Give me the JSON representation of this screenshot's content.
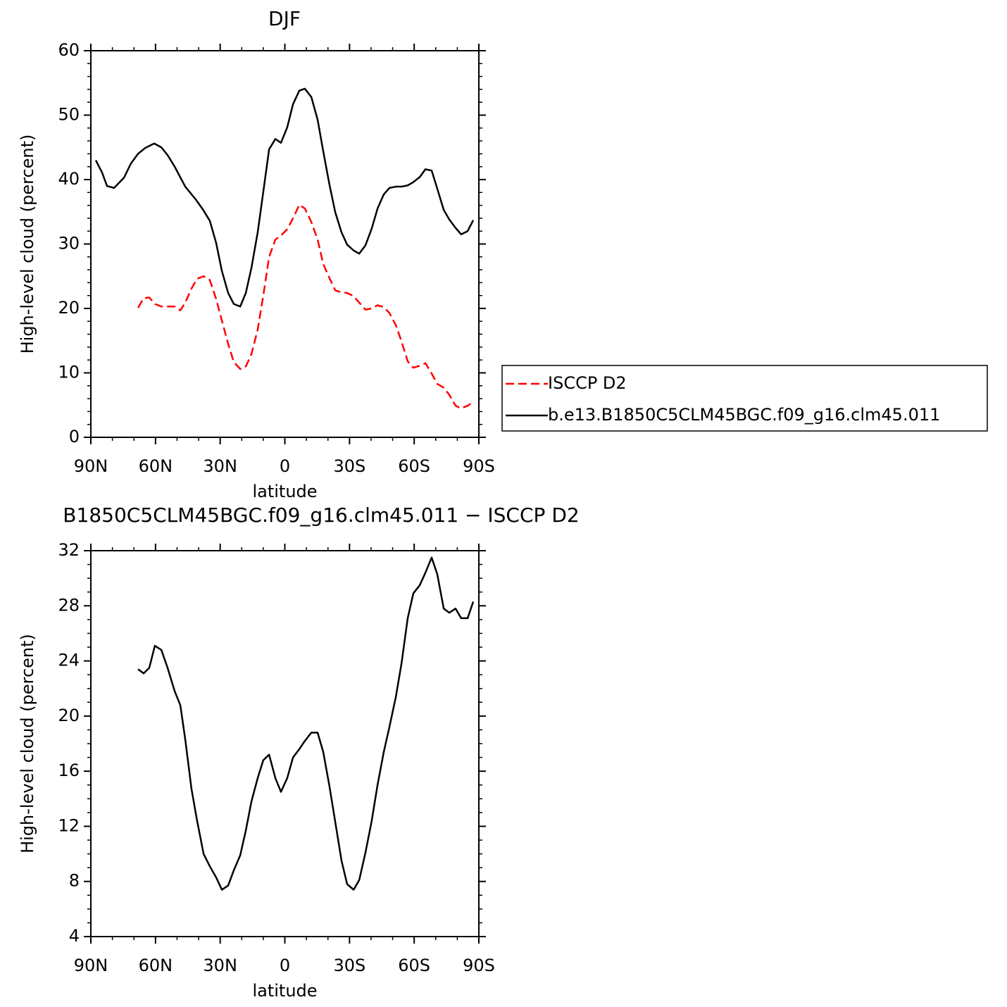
{
  "chart_data": [
    {
      "type": "line",
      "title": "DJF",
      "x_label": "latitude",
      "y_label": "High-level cloud (percent)",
      "xlim": [
        90,
        -90
      ],
      "ylim": [
        0,
        60
      ],
      "xticks": [
        {
          "value": 90,
          "label": "90N"
        },
        {
          "value": 60,
          "label": "60N"
        },
        {
          "value": 30,
          "label": "30N"
        },
        0,
        {
          "value": -30,
          "label": "30S"
        },
        {
          "value": -60,
          "label": "60S"
        },
        {
          "value": -90,
          "label": "90S"
        }
      ],
      "yticks": [
        0,
        10,
        20,
        30,
        40,
        50,
        60
      ],
      "legend": "right",
      "series": [
        {
          "name": "ISCCP D2",
          "color": "#ff0000",
          "dashed": true,
          "x": [
            68.1,
            65.5,
            62.9,
            60.3,
            57.3,
            54.4,
            51.1,
            48.5,
            46.2,
            43.3,
            40.7,
            37.7,
            34.8,
            31.9,
            29.2,
            26.3,
            23.7,
            20.7,
            18.1,
            15.5,
            12.6,
            10.0,
            7.3,
            4.4,
            1.8,
            -1.1,
            -3.8,
            -6.7,
            -9.3,
            -12.3,
            -15.2,
            -17.8,
            -20.7,
            -23.4,
            -26.3,
            -28.9,
            -31.9,
            -34.5,
            -37.4,
            -40.3,
            -43.0,
            -45.9,
            -48.5,
            -51.5,
            -54.1,
            -57.0,
            -59.6,
            -62.6,
            -65.2,
            -68.1,
            -70.7,
            -73.7,
            -76.3,
            -79.2,
            -81.8,
            -84.8,
            -87.4
          ],
          "values": [
            20.1,
            21.6,
            21.7,
            20.7,
            20.3,
            20.3,
            20.3,
            19.7,
            20.9,
            23.1,
            24.6,
            25.0,
            24.4,
            21.5,
            18.1,
            14.5,
            11.7,
            10.6,
            11.0,
            12.9,
            16.7,
            22.0,
            28.0,
            30.7,
            31.3,
            32.3,
            34.0,
            36.1,
            35.5,
            33.4,
            30.7,
            26.9,
            24.7,
            22.8,
            22.5,
            22.4,
            21.9,
            20.9,
            19.8,
            20.0,
            20.5,
            20.2,
            19.3,
            17.4,
            14.9,
            11.8,
            10.8,
            11.1,
            11.5,
            9.9,
            8.3,
            7.7,
            6.6,
            4.9,
            4.5,
            4.9,
            5.5
          ]
        },
        {
          "name": "b.e13.B1850C5CLM45BGC.f09_g16.clm45.011",
          "color": "#000000",
          "dashed": false,
          "x": [
            87.7,
            84.8,
            82.5,
            79.2,
            74.6,
            71.4,
            68.1,
            64.8,
            60.6,
            57.3,
            54.4,
            51.1,
            46.2,
            41.3,
            38.1,
            34.8,
            31.9,
            29.2,
            26.3,
            23.7,
            20.7,
            18.1,
            15.5,
            12.6,
            10.0,
            7.3,
            4.4,
            1.8,
            -1.1,
            -3.8,
            -6.7,
            -9.3,
            -12.3,
            -15.2,
            -17.8,
            -20.7,
            -23.4,
            -26.3,
            -28.9,
            -31.9,
            -34.5,
            -37.4,
            -40.3,
            -43.0,
            -45.9,
            -48.5,
            -51.5,
            -54.1,
            -57.0,
            -59.6,
            -62.6,
            -65.2,
            -68.1,
            -70.7,
            -73.7,
            -76.3,
            -79.2,
            -81.8,
            -84.8,
            -87.4
          ],
          "values": [
            43.0,
            41.1,
            39.0,
            38.7,
            40.3,
            42.5,
            44.0,
            44.9,
            45.6,
            45.0,
            43.8,
            42.0,
            38.9,
            36.9,
            35.4,
            33.6,
            30.2,
            25.8,
            22.4,
            20.7,
            20.3,
            22.4,
            26.3,
            31.8,
            38.1,
            44.7,
            46.3,
            45.7,
            48.1,
            51.7,
            53.8,
            54.1,
            52.8,
            49.3,
            44.4,
            39.2,
            34.9,
            31.8,
            29.9,
            29.0,
            28.5,
            29.8,
            32.4,
            35.5,
            37.7,
            38.7,
            38.9,
            38.9,
            39.1,
            39.6,
            40.4,
            41.6,
            41.4,
            38.6,
            35.3,
            33.8,
            32.5,
            31.5,
            32.0,
            33.7
          ]
        }
      ]
    },
    {
      "type": "line",
      "title": "B1850C5CLM45BGC.f09_g16.clm45.011 − ISCCP D2",
      "x_label": "latitude",
      "y_label": "High-level cloud (percent)",
      "xlim": [
        90,
        -90
      ],
      "ylim": [
        4,
        32
      ],
      "xticks": [
        {
          "value": 90,
          "label": "90N"
        },
        {
          "value": 60,
          "label": "60N"
        },
        {
          "value": 30,
          "label": "30N"
        },
        0,
        {
          "value": -30,
          "label": "30S"
        },
        {
          "value": -60,
          "label": "60S"
        },
        {
          "value": -90,
          "label": "90S"
        }
      ],
      "yticks": [
        4,
        8,
        12,
        16,
        20,
        24,
        28,
        32
      ],
      "color": "#000000",
      "x": [
        68.1,
        65.5,
        62.9,
        60.3,
        57.3,
        54.4,
        51.1,
        48.5,
        46.2,
        43.3,
        40.7,
        37.7,
        34.8,
        31.9,
        29.2,
        26.3,
        23.7,
        20.7,
        18.1,
        15.5,
        12.6,
        10.0,
        7.3,
        4.4,
        1.8,
        -1.1,
        -3.8,
        -6.7,
        -9.3,
        -12.3,
        -15.2,
        -17.8,
        -20.7,
        -23.4,
        -26.3,
        -28.9,
        -31.9,
        -34.5,
        -37.4,
        -40.3,
        -43.0,
        -45.9,
        -48.5,
        -51.5,
        -54.1,
        -57.0,
        -59.6,
        -62.6,
        -65.2,
        -68.1,
        -70.7,
        -73.7,
        -76.3,
        -79.2,
        -81.8,
        -84.8,
        -87.4
      ],
      "values": [
        23.4,
        23.1,
        23.5,
        25.1,
        24.8,
        23.5,
        21.8,
        20.8,
        18.3,
        14.7,
        12.4,
        10.0,
        9.1,
        8.3,
        7.4,
        7.7,
        8.8,
        9.9,
        11.7,
        13.8,
        15.5,
        16.8,
        17.2,
        15.5,
        14.5,
        15.5,
        17.0,
        17.6,
        18.2,
        18.8,
        18.8,
        17.4,
        14.9,
        12.3,
        9.5,
        7.8,
        7.4,
        8.1,
        10.1,
        12.4,
        15.0,
        17.4,
        19.2,
        21.4,
        23.8,
        27.1,
        28.9,
        29.5,
        30.4,
        31.5,
        30.3,
        27.8,
        27.5,
        27.8,
        27.1,
        27.1,
        28.3
      ]
    }
  ]
}
